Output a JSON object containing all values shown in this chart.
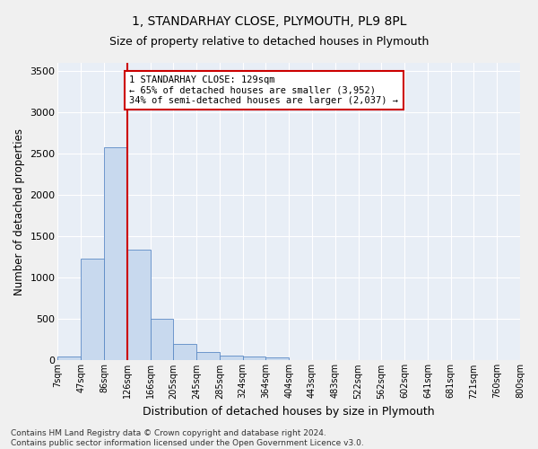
{
  "title": "1, STANDARHAY CLOSE, PLYMOUTH, PL9 8PL",
  "subtitle": "Size of property relative to detached houses in Plymouth",
  "xlabel": "Distribution of detached houses by size in Plymouth",
  "ylabel": "Number of detached properties",
  "bin_labels": [
    "7sqm",
    "47sqm",
    "86sqm",
    "126sqm",
    "166sqm",
    "205sqm",
    "245sqm",
    "285sqm",
    "324sqm",
    "364sqm",
    "404sqm",
    "443sqm",
    "483sqm",
    "522sqm",
    "562sqm",
    "602sqm",
    "641sqm",
    "681sqm",
    "721sqm",
    "760sqm",
    "800sqm"
  ],
  "bar_heights": [
    50,
    1230,
    2580,
    1340,
    500,
    195,
    100,
    55,
    50,
    40,
    0,
    0,
    0,
    0,
    0,
    0,
    0,
    0,
    0,
    0
  ],
  "bar_color": "#c8d9ee",
  "bar_edge_color": "#5b8ac5",
  "ylim": [
    0,
    3600
  ],
  "yticks": [
    0,
    500,
    1000,
    1500,
    2000,
    2500,
    3000,
    3500
  ],
  "property_line_x": 3.0,
  "property_line_color": "#cc0000",
  "annotation_text": "1 STANDARHAY CLOSE: 129sqm\n← 65% of detached houses are smaller (3,952)\n34% of semi-detached houses are larger (2,037) →",
  "annotation_box_color": "#ffffff",
  "annotation_box_edge": "#cc0000",
  "footer_text": "Contains HM Land Registry data © Crown copyright and database right 2024.\nContains public sector information licensed under the Open Government Licence v3.0.",
  "fig_bg_color": "#f0f0f0",
  "plot_bg_color": "#e8eef6",
  "grid_color": "#ffffff"
}
